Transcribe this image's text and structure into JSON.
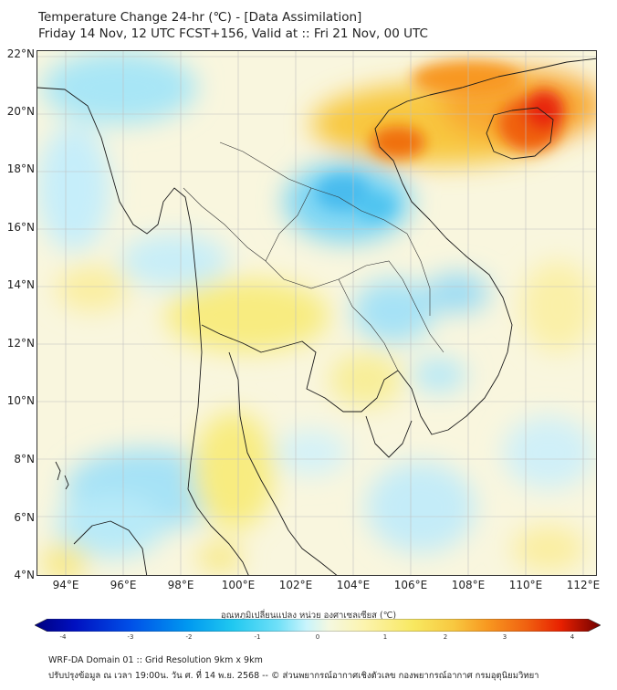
{
  "header": {
    "title_line1": "Temperature Change 24-hr (℃) - [Data Assimilation]",
    "title_line2": "Friday 14 Nov, 12 UTC FCST+156, Valid at :: Fri 21 Nov, 00 UTC"
  },
  "map": {
    "lat_labels": [
      "22°N",
      "20°N",
      "18°N",
      "16°N",
      "14°N",
      "12°N",
      "10°N",
      "8°N",
      "6°N",
      "4°N"
    ],
    "lon_labels": [
      "94°E",
      "96°E",
      "98°E",
      "100°E",
      "102°E",
      "104°E",
      "106°E",
      "108°E",
      "110°E",
      "112°E"
    ],
    "extent": {
      "lon_min": 93,
      "lon_max": 112.5,
      "lat_min": 4,
      "lat_max": 22.2
    }
  },
  "colorbar": {
    "title": "อุณหภูมิเปลี่ยนแปลง หน่วย องศาเซลเซียส (℃)",
    "ticks": [
      "-4",
      "-3",
      "-2",
      "-1",
      "0",
      "1",
      "2",
      "3",
      "4"
    ],
    "colors": [
      "#00007f",
      "#0010c0",
      "#0050e8",
      "#0098f0",
      "#20c8f0",
      "#70e0f8",
      "#b8f2fc",
      "#f4f8e0",
      "#fcf4b0",
      "#f8e860",
      "#f8c840",
      "#f89820",
      "#f06010",
      "#e82000",
      "#b00000",
      "#700000"
    ]
  },
  "footer": {
    "line1": "WRF-DA Domain 01 :: Grid Resolution 9km x 9km",
    "line2": "ปรับปรุงข้อมูล ณ เวลา 19:00น. วัน ศ. ที่ 14 พ.ย. 2568 -- © ส่วนพยากรณ์อากาศเชิงตัวเลข กองพยากรณ์อากาศ กรมอุตุนิยมวิทยา"
  }
}
